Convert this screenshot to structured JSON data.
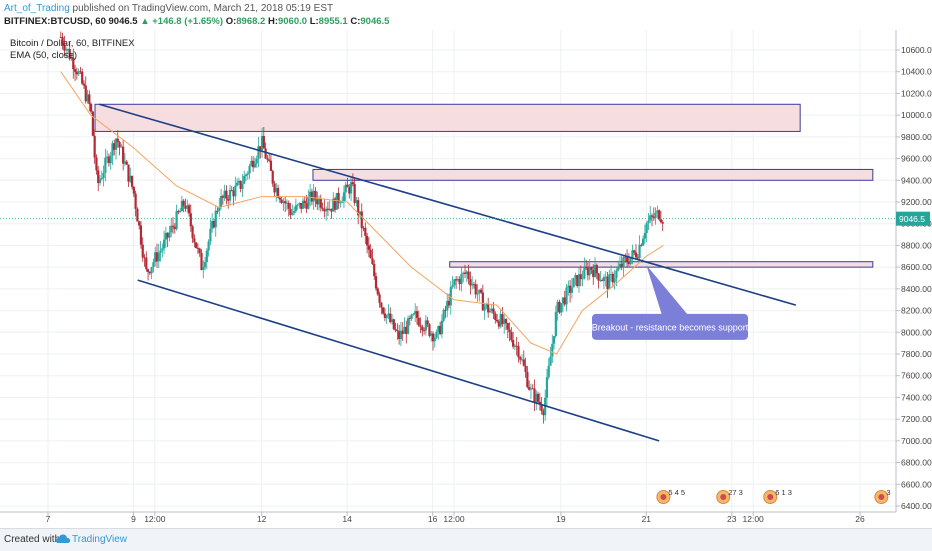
{
  "header": {
    "author": "Art_of_Trading",
    "published_text": " published on TradingView.com, March 21, 2018 05:19 EST",
    "symbol": "BITFINEX:BTCUSD, 60",
    "last": "9046.5",
    "change": "▲ +146.8 (+1.65%)",
    "o_label": "O:",
    "o_value": "8968.2",
    "h_label": "H:",
    "h_value": "9060.0",
    "l_label": "L:",
    "l_value": "8955.1",
    "c_label": "C:",
    "c_value": "9046.5"
  },
  "overlay": {
    "title": "Bitcoin / Dollar, 60, BITFINEX",
    "ema": "EMA (50, close)"
  },
  "footer": {
    "created_with": "Created with",
    "brand": "TradingView"
  },
  "colors": {
    "up": "#26a69a",
    "down": "#b22833",
    "ema": "#f4a460",
    "channel": "#1c3f86",
    "zone_fill": "#f6dde0",
    "zone_border": "#3a3aa0",
    "callout": "#7b7fd8",
    "last_price": "#26a69a"
  },
  "chart_data": {
    "type": "candlestick",
    "title": "Bitcoin / Dollar, 60, BITFINEX",
    "ylim": [
      6400,
      10800
    ],
    "y_ticks": [
      6400,
      6600,
      6800,
      7000,
      7200,
      7400,
      7600,
      7800,
      8000,
      8200,
      8400,
      8600,
      8800,
      9000,
      9200,
      9400,
      9600,
      9800,
      10000,
      10200,
      10400,
      10600
    ],
    "x_ticks": [
      "7",
      "9",
      "12:00",
      "12",
      "14",
      "16",
      "12:00",
      "19",
      "21",
      "23",
      "12:00",
      "26"
    ],
    "x_tick_time": [
      7,
      9,
      9.5,
      12,
      14,
      16,
      16.5,
      19,
      21,
      23,
      23.5,
      26
    ],
    "last_price": 9046.5,
    "price_path": [
      [
        7.3,
        10720
      ],
      [
        7.7,
        10400
      ],
      [
        8.0,
        10050
      ],
      [
        8.15,
        9350
      ],
      [
        8.6,
        9800
      ],
      [
        9.0,
        9300
      ],
      [
        9.3,
        8550
      ],
      [
        9.7,
        8800
      ],
      [
        10.2,
        9200
      ],
      [
        10.6,
        8600
      ],
      [
        11.0,
        9200
      ],
      [
        11.5,
        9350
      ],
      [
        12.0,
        9750
      ],
      [
        12.3,
        9350
      ],
      [
        12.7,
        9100
      ],
      [
        13.2,
        9250
      ],
      [
        13.6,
        9150
      ],
      [
        14.1,
        9350
      ],
      [
        14.4,
        8900
      ],
      [
        14.8,
        8250
      ],
      [
        15.2,
        7950
      ],
      [
        15.6,
        8150
      ],
      [
        16.1,
        7950
      ],
      [
        16.5,
        8450
      ],
      [
        16.8,
        8550
      ],
      [
        17.2,
        8250
      ],
      [
        17.6,
        8100
      ],
      [
        18.0,
        7850
      ],
      [
        18.3,
        7450
      ],
      [
        18.6,
        7300
      ],
      [
        18.9,
        8200
      ],
      [
        19.3,
        8450
      ],
      [
        19.7,
        8600
      ],
      [
        20.1,
        8450
      ],
      [
        20.5,
        8650
      ],
      [
        20.8,
        8750
      ],
      [
        21.0,
        9000
      ],
      [
        21.3,
        9100
      ],
      [
        21.4,
        9046.5
      ]
    ],
    "ema50": [
      [
        7.3,
        10400
      ],
      [
        8.0,
        10000
      ],
      [
        9.0,
        9700
      ],
      [
        10.0,
        9350
      ],
      [
        11.0,
        9150
      ],
      [
        12.0,
        9250
      ],
      [
        13.0,
        9250
      ],
      [
        14.0,
        9200
      ],
      [
        14.5,
        9000
      ],
      [
        15.5,
        8600
      ],
      [
        16.5,
        8300
      ],
      [
        17.5,
        8250
      ],
      [
        18.3,
        7900
      ],
      [
        18.9,
        7800
      ],
      [
        19.5,
        8200
      ],
      [
        20.3,
        8450
      ],
      [
        21.0,
        8700
      ],
      [
        21.4,
        8800
      ]
    ],
    "resistance_zones": [
      {
        "x_start": 8.1,
        "x_end": 24.6,
        "y_low": 9850,
        "y_high": 10100
      },
      {
        "x_start": 13.2,
        "x_end": 26.3,
        "y_low": 9400,
        "y_high": 9500
      },
      {
        "x_start": 16.4,
        "x_end": 26.3,
        "y_low": 8600,
        "y_high": 8650
      }
    ],
    "trendlines": [
      {
        "x1": 8.2,
        "y1": 10100,
        "x2": 24.5,
        "y2": 8250
      },
      {
        "x1": 9.1,
        "y1": 8480,
        "x2": 21.3,
        "y2": 7000
      }
    ],
    "annotations": [
      {
        "text": "Breakout - resistance becomes support",
        "x": 21.6,
        "y": 8050,
        "points_to": [
          21.0,
          8620
        ]
      }
    ],
    "event_markers": [
      {
        "x": 21.4,
        "label": "5 4 5"
      },
      {
        "x": 22.8,
        "label": "27 3"
      },
      {
        "x": 23.9,
        "label": "6 1 3"
      },
      {
        "x": 26.5,
        "label": "3"
      }
    ]
  }
}
